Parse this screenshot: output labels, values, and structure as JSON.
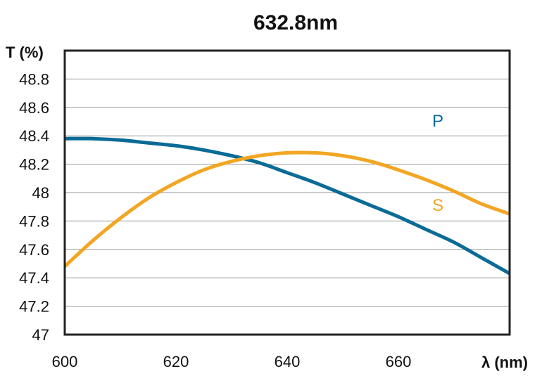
{
  "chart_data": {
    "type": "line",
    "title": "632.8nm",
    "ylabel": "T (%)",
    "xlabel": "λ (nm)",
    "xlim": [
      600,
      680
    ],
    "ylim": [
      47,
      49
    ],
    "x_ticks": [
      "600",
      "620",
      "640",
      "660"
    ],
    "y_ticks": [
      "47",
      "47.2",
      "47.4",
      "47.6",
      "47.8",
      "48",
      "48.2",
      "48.4",
      "48.6",
      "48.8"
    ],
    "grid": true,
    "legend": "inline labels",
    "series": [
      {
        "name": "P",
        "color": "#0a6b96",
        "x": [
          600,
          605,
          610,
          615,
          620,
          625,
          630,
          635,
          640,
          645,
          650,
          655,
          660,
          665,
          670,
          675,
          680
        ],
        "y": [
          48.38,
          48.38,
          48.37,
          48.35,
          48.33,
          48.3,
          48.26,
          48.21,
          48.14,
          48.07,
          47.99,
          47.91,
          47.83,
          47.74,
          47.65,
          47.54,
          47.43
        ]
      },
      {
        "name": "S",
        "color": "#f2a623",
        "x": [
          600,
          605,
          610,
          615,
          620,
          625,
          630,
          635,
          640,
          645,
          650,
          655,
          660,
          665,
          670,
          675,
          680
        ],
        "y": [
          47.48,
          47.66,
          47.82,
          47.96,
          48.07,
          48.16,
          48.22,
          48.26,
          48.28,
          48.28,
          48.26,
          48.22,
          48.16,
          48.09,
          48.01,
          47.92,
          47.85
        ]
      }
    ]
  }
}
